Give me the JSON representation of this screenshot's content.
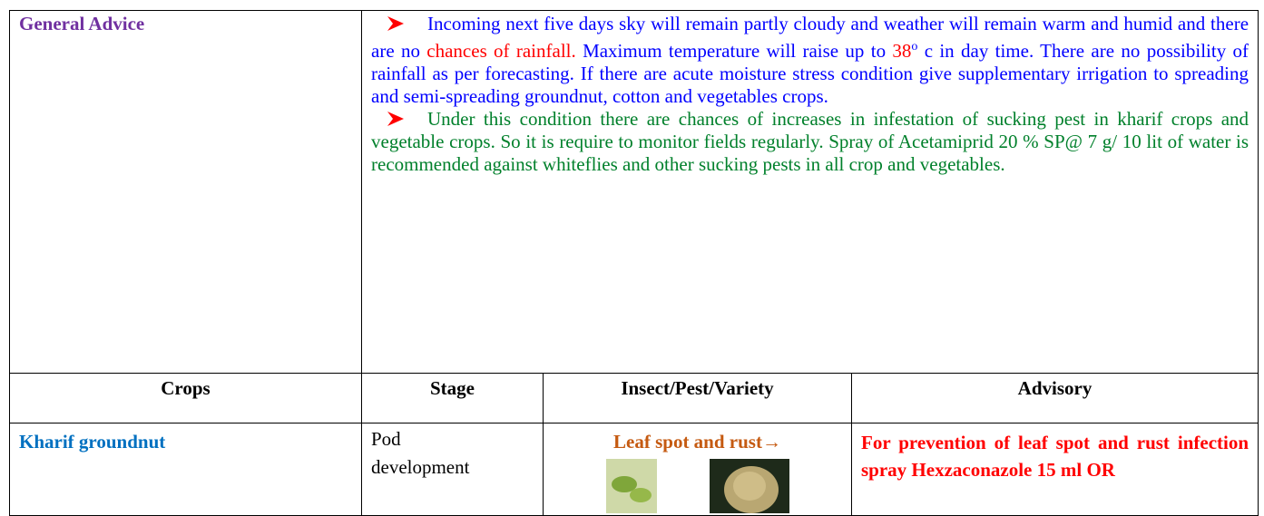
{
  "general_advice": {
    "label": "General Advice",
    "paragraphs": [
      {
        "color": "#0000ff",
        "segments": [
          {
            "text": "Incoming next five days sky will remain partly cloudy and weather will remain warm and humid and there are no ",
            "color": "#0000ff"
          },
          {
            "text": "chances of  rainfall.",
            "color": "#ff0000"
          },
          {
            "text": "  Maximum temperature will raise up to ",
            "color": "#0000ff"
          },
          {
            "text": "38",
            "color": "#ff0000"
          },
          {
            "text": "o",
            "color": "#0000ff",
            "sup": true
          },
          {
            "text": " c in day time. There are no possibility of rainfall as per forecasting. If there are acute moisture stress condition give supplementary irrigation to spreading and semi-spreading groundnut, cotton and vegetables crops.",
            "color": "#0000ff"
          }
        ]
      },
      {
        "color": "#00802b",
        "segments": [
          {
            "text": "Under this condition there are chances of increases in infestation of sucking pest in kharif crops and vegetable crops. So it is require to monitor fields regularly. Spray of Acetamiprid 20 % SP@ 7 g/ 10 lit of water is recommended against whiteflies and other sucking pests in all crop and vegetables.",
            "color": "#00802b"
          }
        ]
      }
    ]
  },
  "table": {
    "headers": [
      "Crops",
      "Stage",
      "Insect/Pest/Variety",
      "Advisory"
    ],
    "rows": [
      [
        "Kharif groundnut",
        "Pod development",
        "Leaf spot and rust→",
        "For prevention of leaf spot and rust infection spray Hexzaconazole 15 ml OR"
      ]
    ]
  }
}
